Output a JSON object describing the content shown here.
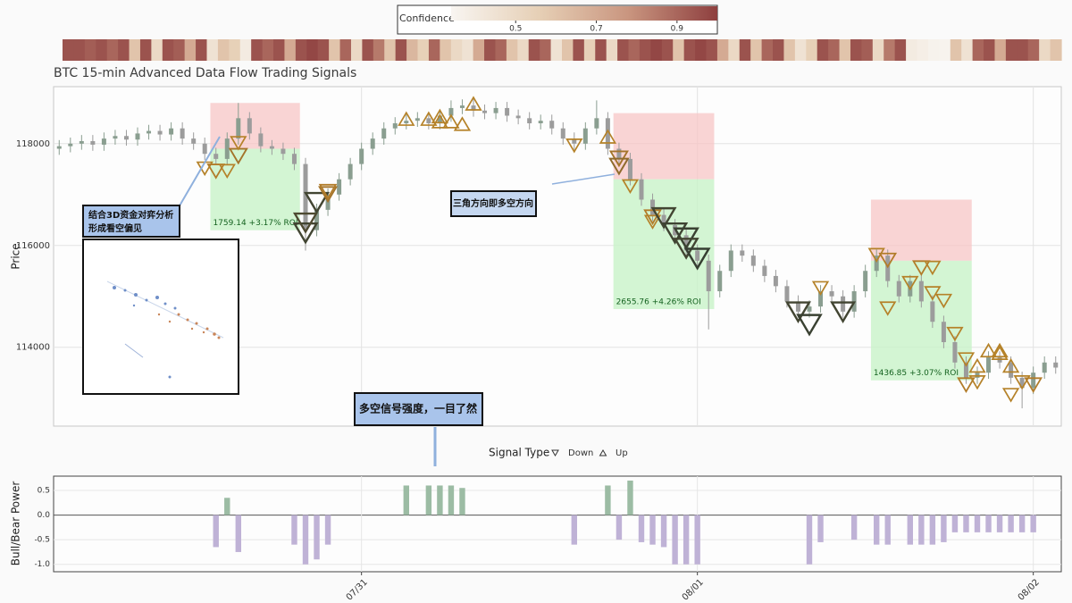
{
  "chart_data": [
    {
      "type": "heatmap",
      "colorbar_label": "Confidence",
      "clim": [
        0.34,
        1.0
      ],
      "cticks": [
        0.5,
        0.7,
        0.9
      ],
      "colormap": [
        "#f8f5f1",
        "#e6cfb5",
        "#c9957f",
        "#8e3f3f"
      ],
      "values": [
        0.95,
        0.95,
        0.92,
        0.95,
        0.9,
        0.95,
        0.6,
        0.95,
        0.5,
        0.95,
        0.92,
        0.7,
        0.95,
        0.45,
        0.6,
        0.55,
        0.4,
        0.95,
        0.9,
        0.95,
        0.7,
        0.95,
        0.98,
        0.95,
        0.6,
        0.9,
        0.5,
        0.95,
        0.85,
        0.6,
        0.95,
        0.65,
        0.55,
        0.9,
        0.6,
        0.5,
        0.45,
        0.7,
        0.95,
        0.9,
        0.6,
        0.5,
        0.95,
        0.9,
        0.45,
        0.6,
        0.95,
        0.55,
        0.95,
        0.5,
        0.95,
        0.9,
        0.95,
        0.98,
        0.95,
        0.6,
        0.95,
        0.98,
        0.95,
        0.7,
        0.5,
        0.95,
        0.6,
        0.9,
        0.95,
        0.6,
        0.45,
        0.55,
        0.95,
        0.9,
        0.6,
        0.95,
        0.92,
        0.5,
        0.85,
        0.95,
        0.4,
        0.38,
        0.36,
        0.35,
        0.6,
        0.45,
        0.9,
        0.95,
        0.7,
        0.95,
        0.95,
        0.9,
        0.5,
        0.6
      ]
    },
    {
      "type": "candlestick",
      "title": "BTC 15-min Advanced Data Flow Trading Signals",
      "ylabel": "Price",
      "ylim": [
        112450,
        119120
      ],
      "yticks": [
        114000,
        116000,
        118000
      ],
      "grid": true,
      "up_color": "#8a9e90",
      "down_color": "#9c9c9c",
      "open": [
        117900,
        117950,
        118000,
        118050,
        117980,
        118100,
        118150,
        118080,
        118200,
        118250,
        118180,
        118300,
        118100,
        118000,
        117800,
        117700,
        118100,
        118500,
        118200,
        117950,
        117900,
        117800,
        117600,
        116300,
        116700,
        117000,
        117300,
        117600,
        117900,
        118100,
        118300,
        118400,
        118450,
        118500,
        118400,
        118550,
        118700,
        118750,
        118650,
        118600,
        118700,
        118550,
        118500,
        118400,
        118450,
        118300,
        118100,
        118000,
        118300,
        118500,
        117900,
        117700,
        117300,
        116900,
        116600,
        116400,
        116200,
        115900,
        115700,
        115100,
        115500,
        115900,
        115800,
        115600,
        115400,
        115200,
        114900,
        114700,
        114800,
        115100,
        115000,
        114700,
        115100,
        115500,
        115800,
        115300,
        115000,
        115300,
        114900,
        114500,
        114100,
        113700,
        113400,
        113500,
        113800,
        113700,
        113400,
        113200,
        113500,
        113700
      ],
      "high": [
        118070,
        118120,
        118170,
        118170,
        118220,
        118270,
        118270,
        118320,
        118370,
        118370,
        118420,
        118420,
        118220,
        118120,
        117920,
        118220,
        118800,
        118620,
        118320,
        118070,
        118020,
        117920,
        117720,
        116820,
        117120,
        117420,
        117720,
        118020,
        118220,
        118420,
        118520,
        118570,
        118620,
        118620,
        118670,
        118850,
        118870,
        118870,
        118770,
        118820,
        118820,
        118670,
        118620,
        118570,
        118570,
        118420,
        118220,
        118420,
        118850,
        118620,
        118020,
        117820,
        117420,
        117020,
        116720,
        116520,
        116320,
        116020,
        115820,
        115620,
        116020,
        116020,
        115920,
        115720,
        115520,
        115320,
        115020,
        114920,
        115220,
        115220,
        115120,
        115220,
        115620,
        115920,
        115920,
        115420,
        115420,
        115420,
        115020,
        114620,
        114220,
        113820,
        113620,
        113920,
        113920,
        113820,
        113520,
        113620,
        113820,
        113820
      ],
      "low": [
        117780,
        117830,
        117880,
        117860,
        117860,
        117980,
        117960,
        117960,
        118080,
        118060,
        118060,
        117980,
        117880,
        117680,
        117580,
        117580,
        117980,
        118080,
        117830,
        117780,
        117680,
        117480,
        115900,
        116180,
        116580,
        116880,
        117180,
        117480,
        117780,
        117980,
        118180,
        118280,
        118330,
        118280,
        118280,
        118430,
        118580,
        118530,
        118480,
        118480,
        118430,
        118380,
        118280,
        118280,
        118180,
        117980,
        117880,
        117880,
        118180,
        117780,
        117580,
        117180,
        116780,
        116480,
        116280,
        116080,
        115780,
        115580,
        114350,
        114980,
        115380,
        115680,
        115480,
        115280,
        115080,
        114780,
        114580,
        114580,
        114680,
        114880,
        114580,
        114580,
        114980,
        115380,
        115180,
        114880,
        114880,
        114780,
        114380,
        113980,
        113580,
        113280,
        113280,
        113380,
        113580,
        113280,
        112800,
        113080,
        113380,
        113480
      ],
      "close": [
        117950,
        118000,
        118050,
        117980,
        118100,
        118150,
        118080,
        118200,
        118250,
        118180,
        118300,
        118100,
        118000,
        117800,
        117700,
        118100,
        118500,
        118200,
        117950,
        117900,
        117800,
        117600,
        116300,
        116700,
        117000,
        117300,
        117600,
        117900,
        118100,
        118300,
        118400,
        118450,
        118500,
        118400,
        118550,
        118700,
        118750,
        118650,
        118600,
        118700,
        118550,
        118500,
        118400,
        118450,
        118300,
        118100,
        118000,
        118300,
        118500,
        117900,
        117700,
        117300,
        116900,
        116600,
        116400,
        116200,
        115900,
        115700,
        115100,
        115500,
        115900,
        115800,
        115600,
        115400,
        115200,
        114900,
        114700,
        114800,
        115100,
        115000,
        114700,
        115100,
        115500,
        115800,
        115300,
        115000,
        115300,
        114900,
        114500,
        114100,
        113700,
        113400,
        113500,
        113800,
        113700,
        113400,
        113200,
        113500,
        113700,
        113600
      ],
      "signals": {
        "title": "Signal Type",
        "colors": [
          "#c9a227",
          "#b07a2a",
          "#2e3b33"
        ],
        "series": [
          {
            "name": "Down",
            "marker": "down",
            "x": [
              13,
              14,
              15,
              16,
              16,
              22,
              22,
              23,
              24,
              24,
              46,
              50,
              50,
              51,
              53,
              53,
              54,
              55,
              56,
              56,
              57,
              66,
              67,
              68,
              70,
              73,
              74,
              74,
              76,
              77,
              78,
              78,
              79,
              80,
              81,
              81,
              82,
              85,
              86,
              87
            ],
            "values": [
              117550,
              117500,
              117500,
              117800,
              118050,
              116300,
              116500,
              116900,
              117050,
              117100,
              118000,
              117750,
              117600,
              117200,
              116600,
              116500,
              116600,
              116300,
              116200,
              116000,
              115800,
              114750,
              114500,
              115200,
              114750,
              115850,
              115750,
              114800,
              115300,
              115600,
              115600,
              115100,
              114950,
              114300,
              113800,
              113300,
              113350,
              113100,
              113350,
              113300
            ],
            "confidence": [
              0.6,
              0.65,
              0.6,
              0.7,
              0.6,
              0.95,
              0.92,
              0.95,
              0.7,
              0.65,
              0.6,
              0.7,
              0.75,
              0.6,
              0.65,
              0.6,
              0.95,
              0.96,
              0.97,
              0.95,
              0.98,
              0.95,
              0.97,
              0.6,
              0.95,
              0.6,
              0.65,
              0.6,
              0.6,
              0.65,
              0.6,
              0.6,
              0.6,
              0.6,
              0.6,
              0.65,
              0.6,
              0.6,
              0.6,
              0.65
            ]
          },
          {
            "name": "Up",
            "marker": "up",
            "x": [
              31,
              33,
              34,
              34,
              35,
              36,
              37,
              49,
              82,
              83,
              84,
              84,
              85
            ],
            "values": [
              118450,
              118450,
              118500,
              118400,
              118400,
              118350,
              118750,
              118100,
              113600,
              113900,
              113900,
              113850,
              113600
            ],
            "confidence": [
              0.6,
              0.6,
              0.6,
              0.6,
              0.6,
              0.6,
              0.6,
              0.6,
              0.6,
              0.6,
              0.6,
              0.6,
              0.6
            ]
          }
        ]
      },
      "boxes": [
        {
          "x": [
            14,
            21
          ],
          "loss": [
            117900,
            118800
          ],
          "profit": [
            116300,
            117900
          ],
          "label": "1759.14 +3.17% ROI"
        },
        {
          "x": [
            50,
            58
          ],
          "loss": [
            117300,
            118600
          ],
          "profit": [
            114750,
            117300
          ],
          "label": "2655.76 +4.26% ROI"
        },
        {
          "x": [
            73,
            81
          ],
          "loss": [
            115700,
            116900
          ],
          "profit": [
            113350,
            115700
          ],
          "label": "1436.85 +3.07% ROI"
        }
      ],
      "annotations": [
        {
          "text": [
            "结合3D资金对弈分析",
            "形成看空偏见"
          ]
        },
        {
          "text": [
            "三角方向即多空方向"
          ]
        },
        {
          "text": [
            "多空信号强度，一目了然"
          ]
        }
      ]
    },
    {
      "type": "bar",
      "ylabel": "Bull/Bear Power",
      "ylim": [
        -1.15,
        0.79
      ],
      "yticks": [
        0.5,
        {
          "value": 0,
          "label": "0.0"
        },
        -0.5,
        {
          "value": -1,
          "label": "-1.0"
        }
      ],
      "pos_color": "#9cbca4",
      "neg_color": "#bfb2d6",
      "categories": [
        null,
        null,
        null,
        null,
        null,
        null,
        null,
        null,
        null,
        null,
        null,
        null,
        null,
        null,
        null,
        null,
        null,
        null,
        null,
        null,
        null,
        null,
        null,
        null,
        null,
        null,
        null,
        "07/31",
        null,
        null,
        null,
        null,
        null,
        null,
        null,
        null,
        null,
        null,
        null,
        null,
        null,
        null,
        null,
        null,
        null,
        null,
        null,
        null,
        null,
        null,
        null,
        null,
        null,
        null,
        null,
        null,
        null,
        "08/01",
        null,
        null,
        null,
        null,
        null,
        null,
        null,
        null,
        null,
        null,
        null,
        null,
        null,
        null,
        null,
        null,
        null,
        null,
        null,
        null,
        null,
        null,
        null,
        null,
        null,
        null,
        null,
        null,
        null,
        "08/02",
        null,
        null
      ],
      "values": [
        null,
        null,
        null,
        null,
        null,
        null,
        null,
        null,
        null,
        null,
        null,
        null,
        null,
        null,
        -0.65,
        0.35,
        -0.75,
        null,
        null,
        null,
        null,
        -0.6,
        -1,
        -0.9,
        -0.6,
        null,
        null,
        null,
        null,
        null,
        null,
        0.6,
        null,
        0.6,
        0.6,
        0.6,
        0.55,
        null,
        null,
        null,
        null,
        null,
        null,
        null,
        null,
        null,
        -0.6,
        null,
        null,
        0.6,
        -0.5,
        0.7,
        -0.55,
        -0.6,
        -0.65,
        -1,
        -1,
        -1,
        null,
        null,
        null,
        null,
        null,
        null,
        null,
        null,
        null,
        -1,
        -0.55,
        null,
        null,
        -0.5,
        null,
        -0.6,
        -0.6,
        null,
        -0.6,
        -0.6,
        -0.6,
        -0.55,
        -0.35,
        -0.35,
        -0.35,
        -0.35,
        -0.35,
        -0.35,
        -0.35,
        -0.35,
        null,
        null
      ]
    }
  ]
}
